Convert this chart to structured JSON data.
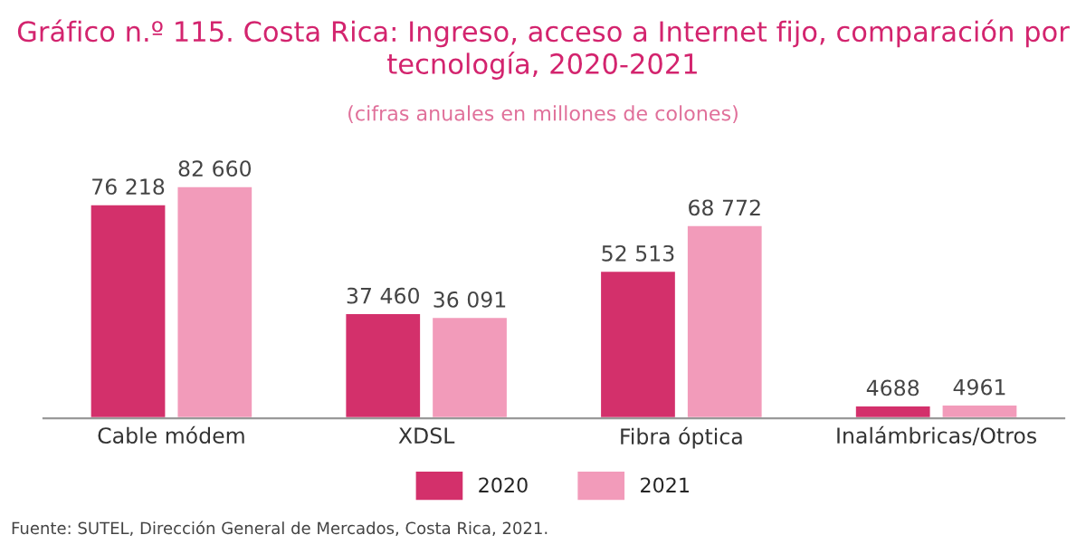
{
  "chart_data": {
    "type": "bar",
    "title": "Gráfico n.º 115. Costa Rica: Ingreso, acceso a Internet fijo, comparación por tecnología, 2020-2021",
    "subtitle": "(cifras anuales en millones de colones)",
    "categories": [
      "Cable módem",
      "XDSL",
      "Fibra óptica",
      "Inalámbricas/Otros"
    ],
    "series": [
      {
        "name": "2020",
        "color": "#d3306b",
        "values": [
          76218,
          37460,
          52513,
          4688
        ],
        "value_labels": [
          "76 218",
          "37 460",
          "52 513",
          "4688"
        ]
      },
      {
        "name": "2021",
        "color": "#f29bba",
        "values": [
          82660,
          36091,
          68772,
          4961
        ],
        "value_labels": [
          "82 660",
          "36 091",
          "68 772",
          "4961"
        ]
      }
    ],
    "legend": "bottom",
    "grid": false,
    "annotations": [
      "Fuente: SUTEL, Dirección General de Mercados, Costa Rica, 2021."
    ]
  }
}
